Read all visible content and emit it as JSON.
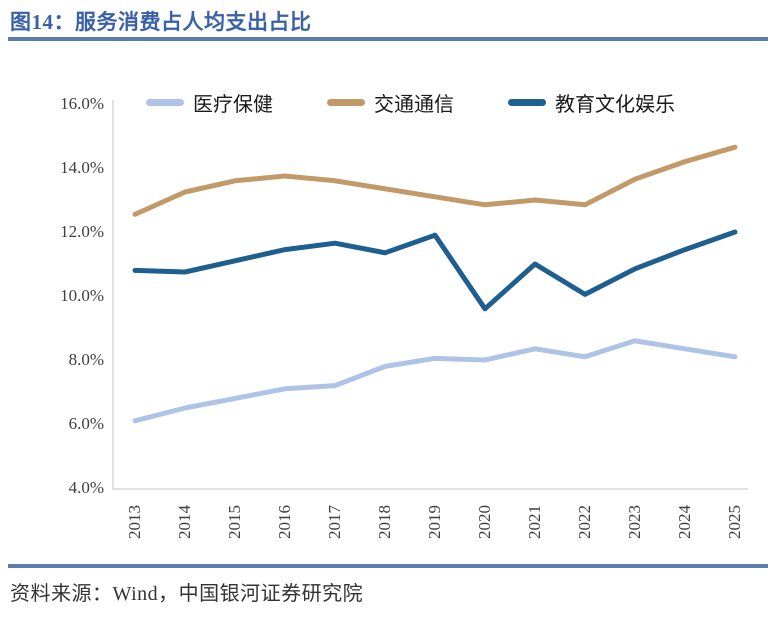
{
  "header": {
    "title": "图14：服务消费占人均支出占比"
  },
  "footer": {
    "source": "资料来源：Wind，中国银河证券研究院"
  },
  "colors": {
    "title_text": "#3A60A8",
    "divider": "#5B7CAD",
    "axis_line": "#D6D6D6",
    "tick_text": "#3F3F3F",
    "healthcare": "#AFC3E6",
    "transport": "#C19A68",
    "education": "#1F5F90"
  },
  "chart_data": {
    "type": "line",
    "title": "服务消费占人均支出占比",
    "categories": [
      "2013",
      "2014",
      "2015",
      "2016",
      "2017",
      "2018",
      "2019",
      "2020",
      "2021",
      "2022",
      "2023",
      "2024",
      "2025"
    ],
    "series": [
      {
        "name": "医疗保健",
        "color_key": "healthcare",
        "values": [
          6.1,
          6.5,
          6.8,
          7.1,
          7.2,
          7.8,
          8.05,
          8.0,
          8.35,
          8.1,
          8.6,
          8.35,
          8.1
        ]
      },
      {
        "name": "交通通信",
        "color_key": "transport",
        "values": [
          12.55,
          13.25,
          13.6,
          13.75,
          13.6,
          13.35,
          13.1,
          12.85,
          13.0,
          12.85,
          13.65,
          14.2,
          14.65
        ]
      },
      {
        "name": "教育文化娱乐",
        "color_key": "education",
        "values": [
          10.8,
          10.75,
          11.1,
          11.45,
          11.65,
          11.35,
          11.9,
          9.6,
          11.0,
          10.05,
          10.85,
          11.45,
          12.0
        ]
      }
    ],
    "ylim": [
      4,
      16
    ],
    "ytick_labels": [
      "16.0%",
      "14.0%",
      "12.0%",
      "10.0%",
      "8.0%",
      "6.0%",
      "4.0%"
    ],
    "yaxis_format": "percent",
    "xaxis_label_rotation": -90,
    "legend_position": "top",
    "grid": false
  }
}
